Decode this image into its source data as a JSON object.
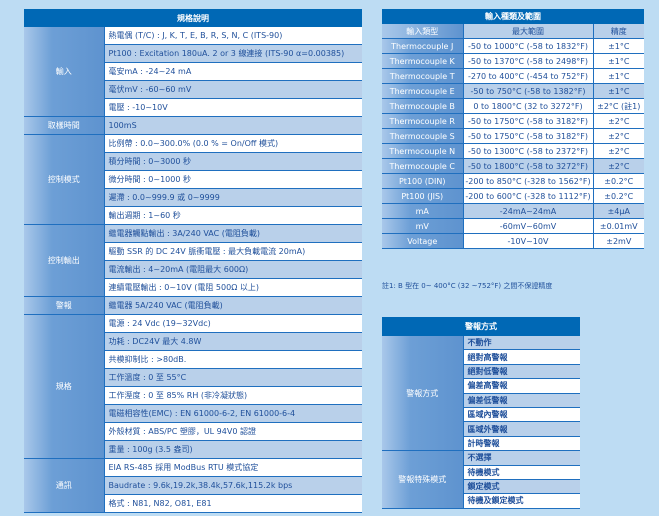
{
  "spec": {
    "title": "規格說明",
    "groups": [
      {
        "label": "輸入",
        "rows": [
          "熱電偶 (T/C) : J, K, T, E, B, R, S, N, C (ITS-90)",
          "Pt100 : Excitation 180uA. 2 or 3 線連接 (ITS-90 α=0.00385)",
          "毫安mA : -24~24 mA",
          "毫伏mV : -60~60 mV",
          "電壓 : -10~10V"
        ]
      },
      {
        "label": "取樣時間",
        "rows": [
          "100mS"
        ]
      },
      {
        "label": "控制模式",
        "rows": [
          "比例帶 : 0.0~300.0% (0.0 % = On/Off 模式)",
          "積分時間 : 0~3000 秒",
          "微分時間 : 0~1000 秒",
          "遲滯 : 0.0~999.9 或 0~9999",
          "輸出週期 : 1~60 秒"
        ]
      },
      {
        "label": "控制輸出",
        "rows": [
          "繼電器觸點輸出 : 3A/240 VAC (電阻負載)",
          "驅動 SSR 的 DC 24V 脈衝電壓 : 最大負載電流 20mA)",
          "電流輸出 : 4~20mA (電阻最大 600Ω)",
          "連續電壓輸出 : 0~10V (電阻 500Ω 以上)"
        ]
      },
      {
        "label": "警報",
        "rows": [
          "繼電器  5A/240 VAC (電阻負載)"
        ]
      },
      {
        "label": "規格",
        "rows": [
          "電源 : 24 Vdc (19~32Vdc)",
          "功耗 : DC24V 最大 4.8W",
          "共模抑制比 : >80dB.",
          "工作溫度 : 0 至 55°C",
          "工作溼度 : 0 至 85% RH (非冷凝狀態)",
          "電磁相容性(EMC) : EN 61000-6-2, EN 61000-6-4",
          "外殼材質 : ABS/PC 塑膠，UL 94V0 認證",
          "重量 : 100g (3.5 盎司)"
        ]
      },
      {
        "label": "通訊",
        "rows": [
          "EIA RS-485 採用 ModBus RTU 模式協定",
          "Baudrate : 9.6k,19.2k,38.4k,57.6k,115.2k bps",
          "格式 : N81, N82, O81, E81"
        ]
      }
    ]
  },
  "ranges": {
    "title": "輸入種類及範圍",
    "columns": [
      "輸入類型",
      "最大範圍",
      "精度"
    ],
    "rows": [
      [
        "Thermocouple J",
        "-50 to 1000°C (-58 to 1832°F)",
        "±1°C"
      ],
      [
        "Thermocouple K",
        "-50 to 1370°C (-58 to 2498°F)",
        "±1°C"
      ],
      [
        "Thermocouple T",
        "-270 to 400°C (-454 to 752°F)",
        "±1°C"
      ],
      [
        "Thermocouple E",
        "-50 to 750°C (-58 to 1382°F)",
        "±1°C"
      ],
      [
        "Thermocouple B",
        "0 to 1800°C (32 to 3272°F)",
        "±2°C (註1)"
      ],
      [
        "Thermocouple R",
        "-50 to 1750°C (-58 to 3182°F)",
        "±2°C"
      ],
      [
        "Thermocouple S",
        "-50 to 1750°C (-58 to 3182°F)",
        "±2°C"
      ],
      [
        "Thermocouple N",
        "-50 to 1300°C (-58 to 2372°F)",
        "±2°C"
      ],
      [
        "Thermocouple C",
        "-50 to 1800°C (-58 to 3272°F)",
        "±2°C"
      ],
      [
        "Pt100 (DIN)",
        "-200 to 850°C (-328 to 1562°F)",
        "±0.2°C"
      ],
      [
        "Pt100 (JIS)",
        "-200 to 600°C (-328 to 1112°F)",
        "±0.2°C"
      ],
      [
        "mA",
        "-24mA~24mA",
        "±4μA"
      ],
      [
        "mV",
        "-60mV~60mV",
        "±0.01mV"
      ],
      [
        "Voltage",
        "-10V~10V",
        "±2mV"
      ]
    ],
    "note": "註1: B 型在 0~ 400°C (32 ~752°F) 之間不保證精度"
  },
  "alarm": {
    "title": "警報方式",
    "groups": [
      {
        "label": "警報方式",
        "rows": [
          "不動作",
          "絕對高警報",
          "絕對低警報",
          "偏差高警報",
          "偏差低警報",
          "區域內警報",
          "區域外警報",
          "計時警報"
        ]
      },
      {
        "label": "警報特殊模式",
        "rows": [
          "不選擇",
          "待機模式",
          "鎖定模式",
          "待機及鎖定模式"
        ]
      }
    ]
  }
}
